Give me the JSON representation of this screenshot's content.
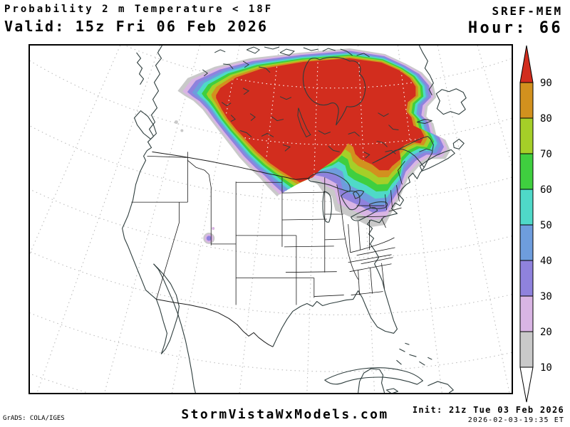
{
  "header": {
    "title": "Probability 2 m Temperature < 18F",
    "valid_label": "Valid: 15z Fri 06 Feb 2026",
    "model": "SREF-MEM",
    "hour_label": "Hour: 66"
  },
  "footer": {
    "engine_credit": "GrADS: COLA/IGES",
    "site": "StormVistaWxModels.com",
    "init_label": "Init: 21z Tue 03 Feb 2026",
    "init_timestamp": "2026-02-03-19:35 ET"
  },
  "colorbar": {
    "tick_labels": [
      "90",
      "80",
      "70",
      "60",
      "50",
      "40",
      "30",
      "20",
      "10"
    ],
    "over_range": "> 90",
    "under_range": "< 10",
    "over_color": "#d22d1e",
    "under_color": "#ffffff"
  },
  "palette": {
    "10": "#c9c9c9",
    "20": "#d9b5e4",
    "30": "#8f82dd",
    "40": "#6e9ddd",
    "50": "#4fd9c8",
    "60": "#3fcf3f",
    "70": "#a5cf28",
    "80": "#d2911e",
    "90": "#d22d1e"
  },
  "band_order": [
    "10",
    "20",
    "30",
    "40",
    "50",
    "60",
    "70",
    "80",
    "90"
  ],
  "map_style": {
    "background": "#ffffff",
    "frame_color": "#000000",
    "graticule_color": "#bdbdbd",
    "graticule_over_field_color": "#ffffff",
    "coastline_color": "#2e3d3d",
    "border_color": "#1a1a1a"
  }
}
